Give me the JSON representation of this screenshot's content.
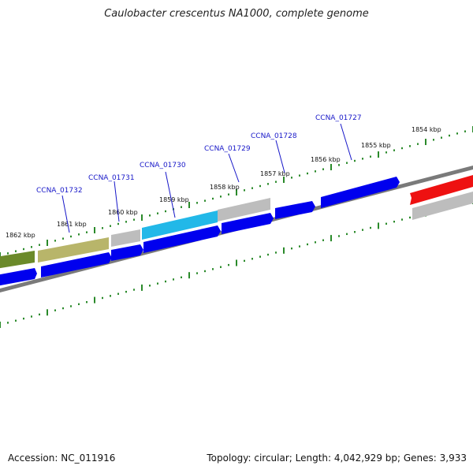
{
  "title": "Caulobacter crescentus NA1000, complete genome",
  "footer": {
    "accession": "Accession: NC_011916",
    "summary": "Topology: circular; Length: 4,042,929 bp; Genes: 3,933"
  },
  "colors": {
    "cds": "#0000ee",
    "tick": "#2a8a2a",
    "backbone": "#808080",
    "gene_label": "#1616c8",
    "olive_dark": "#6b8a2a",
    "olive_light": "#b8b56a",
    "gray_feature": "#bcbcbc",
    "cyan_feature": "#22b8e8",
    "red_feature": "#ee1111"
  },
  "tick_labels": [
    "1862 kbp",
    "1861 kbp",
    "1860 kbp",
    "1859 kbp",
    "1858 kbp",
    "1857 kbp",
    "1856 kbp",
    "1855 kbp",
    "1854 kbp"
  ],
  "gene_labels": [
    "CCNA_01732",
    "CCNA_01731",
    "CCNA_01730",
    "CCNA_01729",
    "CCNA_01728",
    "CCNA_01727"
  ]
}
